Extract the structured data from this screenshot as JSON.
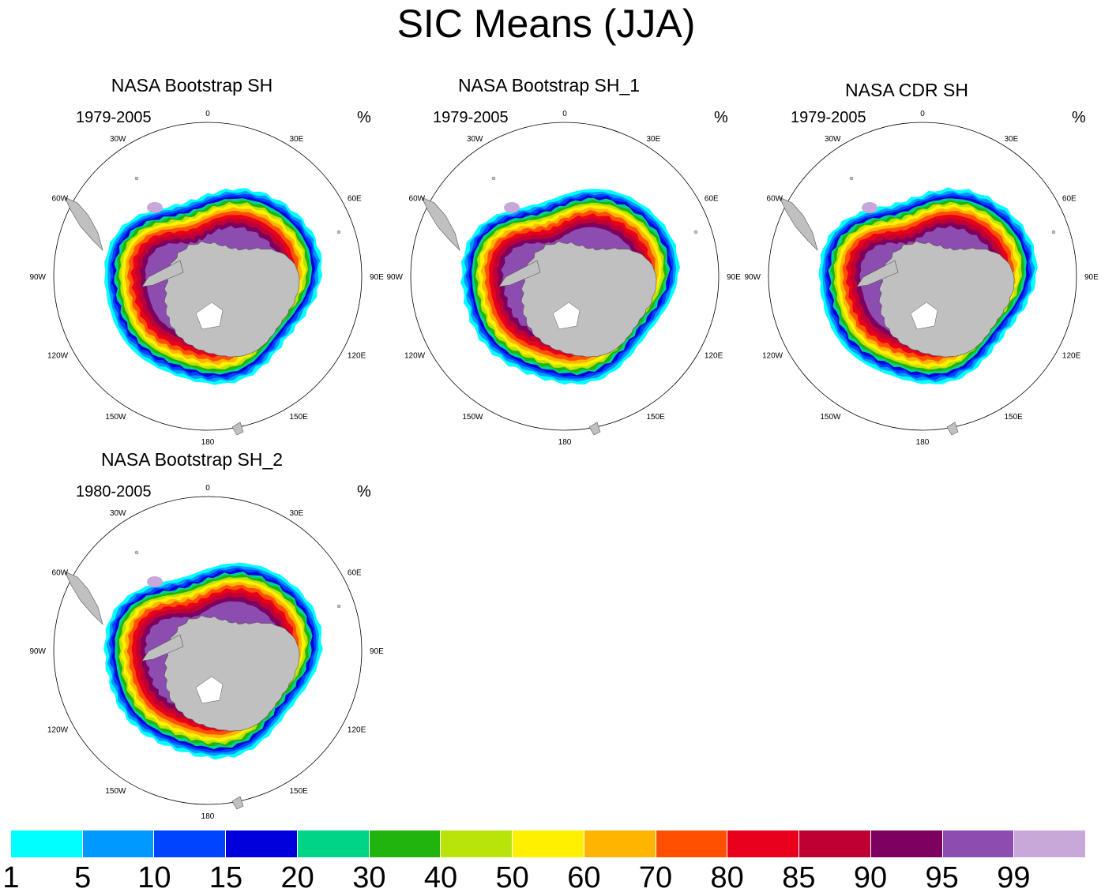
{
  "title": "SIC Means (JJA)",
  "panels": [
    {
      "title": "NASA Bootstrap SH",
      "period": "1979-2005",
      "units": "%"
    },
    {
      "title": "NASA Bootstrap SH_1",
      "period": "1979-2005",
      "units": "%"
    },
    {
      "title": "NASA CDR SH",
      "period": "1979-2005",
      "units": "%"
    },
    {
      "title": "NASA Bootstrap SH_2",
      "period": "1980-2005",
      "units": "%"
    }
  ],
  "lon_labels": [
    "0",
    "30E",
    "60E",
    "90E",
    "120E",
    "150E",
    "180",
    "150W",
    "120W",
    "90W",
    "60W",
    "30W"
  ],
  "colorbar": {
    "colors": [
      "#00ffff",
      "#0099ff",
      "#0044ff",
      "#0000dd",
      "#00d486",
      "#22b40e",
      "#b8e40a",
      "#fff000",
      "#ffb400",
      "#ff5000",
      "#e8001c",
      "#be0032",
      "#7e0060",
      "#8c4cb0",
      "#c8a8d8"
    ],
    "tick_labels": [
      "1",
      "5",
      "10",
      "15",
      "20",
      "30",
      "40",
      "50",
      "60",
      "70",
      "80",
      "85",
      "90",
      "95",
      "99"
    ]
  }
}
